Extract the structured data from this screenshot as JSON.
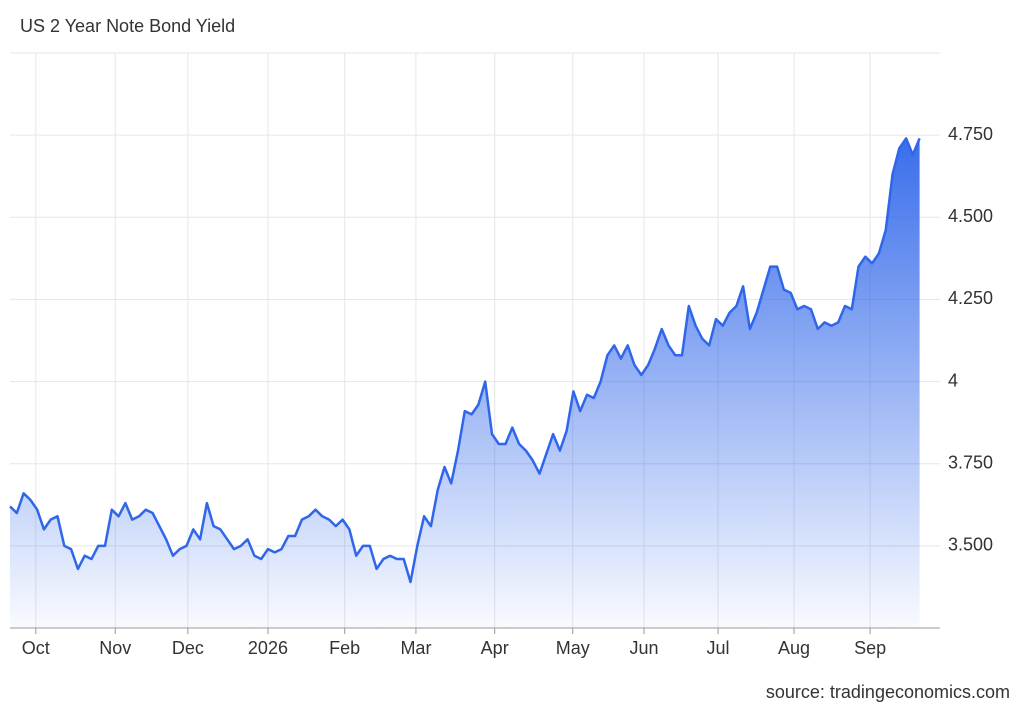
{
  "chart_data": {
    "type": "area",
    "title": "US 2 Year Note Bond Yield",
    "source": "source: tradingeconomics.com",
    "color": "#2f66ea",
    "grid": true,
    "xlim": [
      0,
      137
    ],
    "ylim": [
      3.25,
      5.0
    ],
    "xticks": [
      {
        "value": 3.8,
        "label": "Oct"
      },
      {
        "value": 15.5,
        "label": "Nov"
      },
      {
        "value": 26.2,
        "label": "Dec"
      },
      {
        "value": 38,
        "label": "2026"
      },
      {
        "value": 49.3,
        "label": "Feb"
      },
      {
        "value": 59.8,
        "label": "Mar"
      },
      {
        "value": 71.4,
        "label": "Apr"
      },
      {
        "value": 82.9,
        "label": "May"
      },
      {
        "value": 93.4,
        "label": "Jun"
      },
      {
        "value": 104.3,
        "label": "Jul"
      },
      {
        "value": 115.5,
        "label": "Aug"
      },
      {
        "value": 126.7,
        "label": "Sep"
      }
    ],
    "yticks": [
      {
        "value": 3.5,
        "label": "3.500"
      },
      {
        "value": 3.75,
        "label": "3.750"
      },
      4,
      {
        "value": 4.25,
        "label": "4.250"
      },
      {
        "value": 4.5,
        "label": "4.500"
      },
      {
        "value": 4.75,
        "label": "4.750"
      }
    ],
    "values": [
      3.62,
      3.6,
      3.66,
      3.64,
      3.61,
      3.55,
      3.58,
      3.59,
      3.5,
      3.49,
      3.43,
      3.47,
      3.46,
      3.5,
      3.5,
      3.61,
      3.59,
      3.63,
      3.58,
      3.59,
      3.61,
      3.6,
      3.56,
      3.52,
      3.47,
      3.49,
      3.5,
      3.55,
      3.52,
      3.63,
      3.56,
      3.55,
      3.52,
      3.49,
      3.5,
      3.52,
      3.47,
      3.46,
      3.49,
      3.48,
      3.49,
      3.53,
      3.53,
      3.58,
      3.59,
      3.61,
      3.59,
      3.58,
      3.56,
      3.58,
      3.55,
      3.47,
      3.5,
      3.5,
      3.43,
      3.46,
      3.47,
      3.46,
      3.46,
      3.39,
      3.5,
      3.59,
      3.56,
      3.67,
      3.74,
      3.69,
      3.79,
      3.91,
      3.9,
      3.93,
      4.0,
      3.84,
      3.81,
      3.81,
      3.86,
      3.81,
      3.79,
      3.76,
      3.72,
      3.78,
      3.84,
      3.79,
      3.85,
      3.97,
      3.91,
      3.96,
      3.95,
      4.0,
      4.08,
      4.11,
      4.07,
      4.11,
      4.05,
      4.02,
      4.05,
      4.1,
      4.16,
      4.11,
      4.08,
      4.08,
      4.23,
      4.17,
      4.13,
      4.11,
      4.19,
      4.17,
      4.21,
      4.23,
      4.29,
      4.16,
      4.21,
      4.28,
      4.35,
      4.35,
      4.28,
      4.27,
      4.22,
      4.23,
      4.22,
      4.16,
      4.18,
      4.17,
      4.18,
      4.23,
      4.22,
      4.35,
      4.38,
      4.36,
      4.39,
      4.46,
      4.63,
      4.71,
      4.74,
      4.69,
      4.74
    ]
  }
}
